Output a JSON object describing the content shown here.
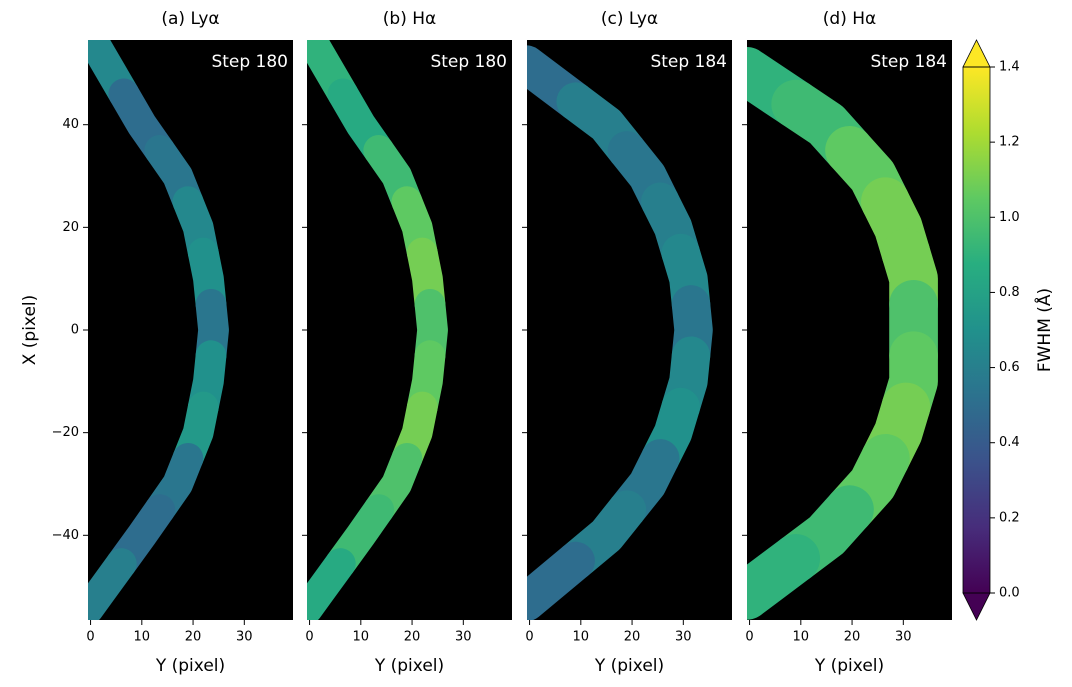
{
  "chart_data": {
    "type": "image",
    "xlabel": "Y (pixel)",
    "ylabel": "X (pixel)",
    "xlim": [
      -0.5,
      39.5
    ],
    "ylim": [
      -56.5,
      56.5
    ],
    "xticks": [
      0,
      10,
      20,
      30
    ],
    "yticks": [
      {
        "value": -40,
        "label": "−40"
      },
      {
        "value": -20,
        "label": "−20"
      },
      0,
      20,
      40
    ],
    "colorbar": {
      "label": "FWHM (Å)",
      "lim": [
        0,
        1.4
      ],
      "colormap": "viridis",
      "extend": "both",
      "ticks": [
        {
          "value": 0,
          "label": "0.0"
        },
        0.2,
        0.4,
        0.6,
        0.8,
        {
          "value": 1,
          "label": "1.0"
        },
        1.2,
        1.4
      ]
    },
    "panels": [
      {
        "title": "(a) Lyα",
        "annotation": "Step 180",
        "x": [
          52,
          40,
          30,
          20,
          10,
          0,
          -10,
          -20,
          -30,
          -40,
          -51
        ],
        "y": [
          3,
          10,
          17,
          21,
          23,
          24,
          23,
          21,
          17,
          10,
          2
        ],
        "values": [
          0.65,
          0.5,
          0.55,
          0.65,
          0.7,
          0.55,
          0.7,
          0.75,
          0.55,
          0.5,
          0.6
        ]
      },
      {
        "title": "(b) Hα",
        "annotation": "Step 180",
        "x": [
          52,
          40,
          30,
          20,
          10,
          0,
          -10,
          -20,
          -30,
          -40,
          -51
        ],
        "y": [
          3,
          10,
          17,
          21,
          23,
          24,
          23,
          21,
          17,
          10,
          2
        ],
        "values": [
          0.9,
          0.85,
          0.95,
          1.05,
          1.1,
          1.0,
          1.05,
          1.1,
          1.0,
          0.95,
          0.85
        ]
      },
      {
        "title": "(c) Lyα",
        "annotation": "Step 184",
        "x": [
          49,
          40,
          30,
          20,
          10,
          0,
          -10,
          -20,
          -30,
          -40,
          -50
        ],
        "y": [
          3,
          15,
          23,
          28,
          31,
          32,
          31,
          28,
          23,
          15,
          3
        ],
        "values": [
          0.5,
          0.6,
          0.55,
          0.6,
          0.65,
          0.55,
          0.65,
          0.7,
          0.55,
          0.6,
          0.5
        ]
      },
      {
        "title": "(d) Hα",
        "annotation": "Step 184",
        "x": [
          48,
          40,
          30,
          20,
          10,
          0,
          -10,
          -20,
          -30,
          -40,
          -49
        ],
        "y": [
          3,
          15,
          24,
          29,
          32,
          32,
          32,
          29,
          24,
          15,
          3
        ],
        "values": [
          0.9,
          0.95,
          1.05,
          1.1,
          1.1,
          1.0,
          1.05,
          1.1,
          1.05,
          0.95,
          0.9
        ]
      }
    ]
  }
}
